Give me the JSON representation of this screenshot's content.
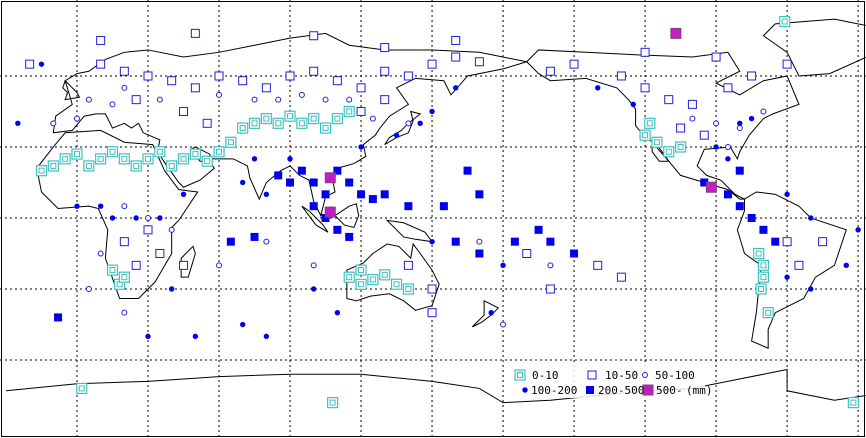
{
  "legend": {
    "items": [
      {
        "label": "0-10",
        "category": 0
      },
      {
        "label": "10-50",
        "category": 1
      },
      {
        "label": "50-100",
        "category": 2
      },
      {
        "label": "100-200",
        "category": 3
      },
      {
        "label": "200-500",
        "category": 4
      },
      {
        "label": "500-",
        "category": 5
      }
    ],
    "unit": "(mm)"
  },
  "colors": {
    "cat0": "#40c0c0",
    "cat1": "#2020e0",
    "cat2": "#2020e0",
    "cat3": "#0000f0",
    "cat4": "#0000f0",
    "cat5": "#c020c0",
    "coast": "#000000",
    "grid": "#000000"
  },
  "map": {
    "projection": "equirectangular",
    "center_lon": 150,
    "grid_step_deg": 30,
    "grid": true
  },
  "stations": [
    [
      -15,
      20,
      0
    ],
    [
      -10,
      22,
      0
    ],
    [
      -5,
      25,
      0
    ],
    [
      0,
      27,
      0
    ],
    [
      5,
      22,
      0
    ],
    [
      10,
      25,
      0
    ],
    [
      15,
      28,
      0
    ],
    [
      20,
      25,
      0
    ],
    [
      25,
      22,
      0
    ],
    [
      30,
      25,
      0
    ],
    [
      35,
      28,
      0
    ],
    [
      40,
      22,
      0
    ],
    [
      45,
      25,
      0
    ],
    [
      50,
      27,
      0
    ],
    [
      55,
      24,
      0
    ],
    [
      60,
      28,
      0
    ],
    [
      65,
      32,
      0
    ],
    [
      70,
      38,
      0
    ],
    [
      75,
      40,
      0
    ],
    [
      80,
      42,
      0
    ],
    [
      85,
      40,
      0
    ],
    [
      90,
      43,
      0
    ],
    [
      95,
      40,
      0
    ],
    [
      100,
      42,
      0
    ],
    [
      105,
      38,
      0
    ],
    [
      110,
      42,
      0
    ],
    [
      115,
      45,
      0
    ],
    [
      115,
      -25,
      0
    ],
    [
      120,
      -28,
      0
    ],
    [
      125,
      -26,
      0
    ],
    [
      130,
      -24,
      0
    ],
    [
      135,
      -28,
      0
    ],
    [
      140,
      -30,
      0
    ],
    [
      120,
      -22,
      0
    ],
    [
      15,
      -22,
      0
    ],
    [
      18,
      -28,
      0
    ],
    [
      20,
      -25,
      0
    ],
    [
      240,
      35,
      0
    ],
    [
      245,
      32,
      0
    ],
    [
      250,
      28,
      0
    ],
    [
      255,
      30,
      0
    ],
    [
      242,
      40,
      0
    ],
    [
      288,
      -15,
      0
    ],
    [
      290,
      -20,
      0
    ],
    [
      290,
      -25,
      0
    ],
    [
      289,
      -30,
      0
    ],
    [
      292,
      -40,
      0
    ],
    [
      299,
      83,
      0
    ],
    [
      2,
      -72,
      0
    ],
    [
      108,
      -78,
      0
    ],
    [
      328,
      -78,
      0
    ],
    [
      -20,
      65,
      1
    ],
    [
      10,
      65,
      1
    ],
    [
      20,
      62,
      1
    ],
    [
      30,
      60,
      1
    ],
    [
      40,
      58,
      1
    ],
    [
      50,
      55,
      1
    ],
    [
      60,
      60,
      1
    ],
    [
      70,
      58,
      1
    ],
    [
      80,
      55,
      1
    ],
    [
      90,
      60,
      1
    ],
    [
      100,
      62,
      1
    ],
    [
      110,
      58,
      1
    ],
    [
      120,
      55,
      1
    ],
    [
      130,
      62,
      1
    ],
    [
      140,
      60,
      1
    ],
    [
      150,
      65,
      1
    ],
    [
      160,
      68,
      1
    ],
    [
      170,
      66,
      1
    ],
    [
      25,
      50,
      1
    ],
    [
      45,
      45,
      1
    ],
    [
      55,
      40,
      1
    ],
    [
      120,
      45,
      1
    ],
    [
      130,
      50,
      1
    ],
    [
      200,
      62,
      1
    ],
    [
      210,
      65,
      1
    ],
    [
      230,
      60,
      1
    ],
    [
      240,
      55,
      1
    ],
    [
      250,
      50,
      1
    ],
    [
      260,
      48,
      1
    ],
    [
      275,
      55,
      1
    ],
    [
      285,
      60,
      1
    ],
    [
      300,
      65,
      1
    ],
    [
      255,
      38,
      1
    ],
    [
      265,
      35,
      1
    ],
    [
      20,
      -10,
      1
    ],
    [
      30,
      -5,
      1
    ],
    [
      35,
      -15,
      1
    ],
    [
      25,
      -20,
      1
    ],
    [
      45,
      -20,
      1
    ],
    [
      140,
      -20,
      1
    ],
    [
      150,
      -30,
      1
    ],
    [
      150,
      -40,
      1
    ],
    [
      300,
      -10,
      1
    ],
    [
      305,
      -20,
      1
    ],
    [
      315,
      -10,
      1
    ],
    [
      190,
      -15,
      1
    ],
    [
      220,
      -20,
      1
    ],
    [
      230,
      -25,
      1
    ],
    [
      200,
      -30,
      1
    ],
    [
      10,
      75,
      1
    ],
    [
      50,
      78,
      1
    ],
    [
      100,
      77,
      1
    ],
    [
      130,
      72,
      1
    ],
    [
      160,
      75,
      1
    ],
    [
      240,
      70,
      1
    ],
    [
      270,
      68,
      1
    ],
    [
      5,
      50,
      2
    ],
    [
      15,
      48,
      2
    ],
    [
      20,
      55,
      2
    ],
    [
      35,
      50,
      2
    ],
    [
      60,
      52,
      2
    ],
    [
      75,
      50,
      2
    ],
    [
      85,
      50,
      2
    ],
    [
      95,
      52,
      2
    ],
    [
      105,
      50,
      2
    ],
    [
      115,
      50,
      2
    ],
    [
      125,
      42,
      2
    ],
    [
      140,
      40,
      2
    ],
    [
      -10,
      40,
      2
    ],
    [
      0,
      42,
      2
    ],
    [
      270,
      40,
      2
    ],
    [
      280,
      38,
      2
    ],
    [
      260,
      42,
      2
    ],
    [
      275,
      30,
      2
    ],
    [
      20,
      5,
      2
    ],
    [
      30,
      0,
      2
    ],
    [
      40,
      -5,
      2
    ],
    [
      5,
      -30,
      2
    ],
    [
      20,
      -40,
      2
    ],
    [
      60,
      -20,
      2
    ],
    [
      80,
      -10,
      2
    ],
    [
      100,
      -20,
      2
    ],
    [
      170,
      -10,
      2
    ],
    [
      200,
      -20,
      2
    ],
    [
      180,
      -45,
      2
    ],
    [
      10,
      -15,
      2
    ],
    [
      290,
      45,
      2
    ],
    [
      -25,
      40,
      3
    ],
    [
      -15,
      65,
      3
    ],
    [
      0,
      5,
      3
    ],
    [
      10,
      5,
      3
    ],
    [
      15,
      0,
      3
    ],
    [
      25,
      0,
      3
    ],
    [
      35,
      0,
      3
    ],
    [
      45,
      10,
      3
    ],
    [
      70,
      15,
      3
    ],
    [
      80,
      10,
      3
    ],
    [
      75,
      25,
      3
    ],
    [
      90,
      25,
      3
    ],
    [
      120,
      30,
      3
    ],
    [
      135,
      35,
      3
    ],
    [
      145,
      40,
      3
    ],
    [
      150,
      45,
      3
    ],
    [
      160,
      55,
      3
    ],
    [
      220,
      55,
      3
    ],
    [
      235,
      48,
      3
    ],
    [
      280,
      40,
      3
    ],
    [
      285,
      42,
      3
    ],
    [
      270,
      30,
      3
    ],
    [
      275,
      25,
      3
    ],
    [
      300,
      10,
      3
    ],
    [
      310,
      0,
      3
    ],
    [
      300,
      -25,
      3
    ],
    [
      310,
      -30,
      3
    ],
    [
      330,
      -5,
      3
    ],
    [
      325,
      -20,
      3
    ],
    [
      30,
      -50,
      3
    ],
    [
      70,
      -45,
      3
    ],
    [
      50,
      -50,
      3
    ],
    [
      180,
      -20,
      3
    ],
    [
      200,
      -10,
      3
    ],
    [
      100,
      -30,
      3
    ],
    [
      80,
      -50,
      3
    ],
    [
      110,
      -40,
      3
    ],
    [
      150,
      -10,
      3
    ],
    [
      175,
      -40,
      3
    ],
    [
      355,
      45,
      3
    ],
    [
      345,
      35,
      3
    ],
    [
      40,
      -30,
      3
    ],
    [
      95,
      20,
      4
    ],
    [
      100,
      15,
      4
    ],
    [
      105,
      10,
      4
    ],
    [
      110,
      20,
      4
    ],
    [
      115,
      15,
      4
    ],
    [
      120,
      10,
      4
    ],
    [
      125,
      8,
      4
    ],
    [
      100,
      5,
      4
    ],
    [
      105,
      0,
      4
    ],
    [
      110,
      -5,
      4
    ],
    [
      115,
      -8,
      4
    ],
    [
      90,
      15,
      4
    ],
    [
      85,
      18,
      4
    ],
    [
      130,
      10,
      4
    ],
    [
      140,
      5,
      4
    ],
    [
      155,
      5,
      4
    ],
    [
      160,
      -10,
      4
    ],
    [
      170,
      -15,
      4
    ],
    [
      185,
      -10,
      4
    ],
    [
      195,
      -5,
      4
    ],
    [
      200,
      -10,
      4
    ],
    [
      210,
      -15,
      4
    ],
    [
      265,
      15,
      4
    ],
    [
      275,
      10,
      4
    ],
    [
      280,
      5,
      4
    ],
    [
      285,
      0,
      4
    ],
    [
      290,
      -5,
      4
    ],
    [
      295,
      -10,
      4
    ],
    [
      280,
      20,
      4
    ],
    [
      -8,
      -42,
      4
    ],
    [
      65,
      -10,
      4
    ],
    [
      75,
      -8,
      4
    ],
    [
      165,
      20,
      4
    ],
    [
      170,
      10,
      4
    ],
    [
      107,
      17,
      5
    ],
    [
      107,
      2.5,
      5
    ],
    [
      253,
      78,
      5
    ],
    [
      268,
      13,
      5
    ]
  ]
}
